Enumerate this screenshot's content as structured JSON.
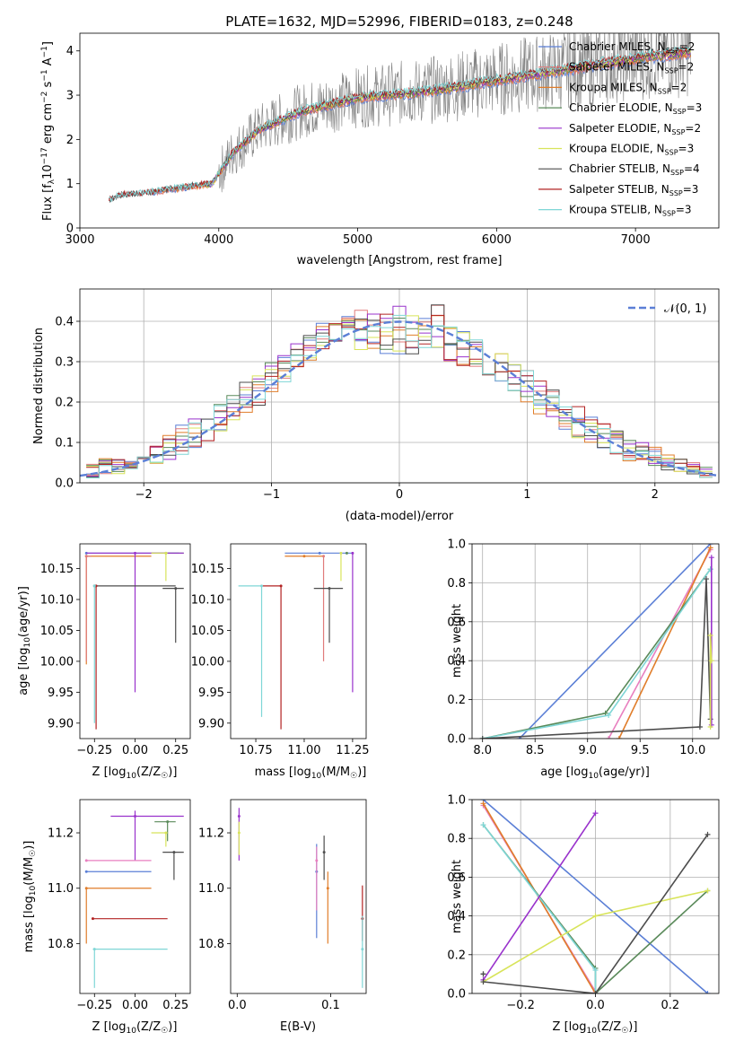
{
  "title": "PLATE=1632, MJD=52996, FIBERID=0183, z=0.248",
  "colors": {
    "chab_miles": "#5b7fd6",
    "salp_miles": "#e07b7b",
    "krou_miles": "#e07d2a",
    "chab_elodie": "#5a8a5a",
    "salp_elodie": "#9932cc",
    "krou_elodie": "#d8e45a",
    "chab_stelib": "#4d4d4d",
    "salp_stelib": "#b22222",
    "krou_stelib": "#7fd6d6",
    "pink": "#e87fbf",
    "data": "#808080"
  },
  "labels": {
    "spec_xlabel": "wavelength [Angstrom, rest frame]",
    "spec_ylabel": "Flux [f",
    "hist_xlabel": "(data-model)/error",
    "hist_ylabel": "Normed distribution",
    "hist_legend": "𝒩(0, 1)",
    "z_label": "Z [log",
    "age_label": "age  [log",
    "mass_label": "mass [log",
    "ebv_label": "E(B-V)",
    "mw_label": "mass weight"
  },
  "chart_data": [
    {
      "type": "line",
      "title": "PLATE=1632, MJD=52996, FIBERID=0183, z=0.248",
      "xlabel": "wavelength [Angstrom, rest frame]",
      "ylabel": "Flux [f_λ 10^-17 erg cm^-2 s^-1 A^-1]",
      "xlim": [
        3000,
        7600
      ],
      "ylim": [
        0,
        4.4
      ],
      "xticks": [
        "3000",
        "4000",
        "5000",
        "6000",
        "7000"
      ],
      "yticks": [
        "0",
        "1",
        "2",
        "3",
        "4"
      ],
      "legend": [
        {
          "name": "Chabrier MILES, N",
          "n": "=2",
          "color": "chab_miles"
        },
        {
          "name": "Salpeter MILES, N",
          "n": "=2",
          "color": "salp_miles"
        },
        {
          "name": "Kroupa MILES, N",
          "n": "=2",
          "color": "krou_miles"
        },
        {
          "name": "Chabrier ELODIE, N",
          "n": "=3",
          "color": "chab_elodie"
        },
        {
          "name": "Salpeter ELODIE, N",
          "n": "=2",
          "color": "salp_elodie"
        },
        {
          "name": "Kroupa ELODIE, N",
          "n": "=3",
          "color": "krou_elodie"
        },
        {
          "name": "Chabrier STELIB, N",
          "n": "=4",
          "color": "chab_stelib"
        },
        {
          "name": "Salpeter STELIB, N",
          "n": "=3",
          "color": "salp_stelib"
        },
        {
          "name": "Kroupa STELIB, N",
          "n": "=3",
          "color": "krou_stelib"
        }
      ],
      "continuum": [
        [
          3200,
          0.62
        ],
        [
          3300,
          0.75
        ],
        [
          3500,
          0.8
        ],
        [
          3800,
          0.95
        ],
        [
          3950,
          1.0
        ],
        [
          4100,
          1.7
        ],
        [
          4300,
          2.25
        ],
        [
          4600,
          2.65
        ],
        [
          5000,
          2.95
        ],
        [
          5500,
          3.1
        ],
        [
          6000,
          3.35
        ],
        [
          6500,
          3.6
        ],
        [
          7000,
          3.85
        ],
        [
          7400,
          4.0
        ]
      ]
    },
    {
      "type": "bar",
      "xlabel": "(data-model)/error",
      "ylabel": "Normed distribution",
      "xlim": [
        -2.5,
        2.5
      ],
      "ylim": [
        0,
        0.48
      ],
      "xticks": [
        "−2",
        "−1",
        "0",
        "1",
        "2"
      ],
      "yticks": [
        "0.0",
        "0.1",
        "0.2",
        "0.3",
        "0.4"
      ],
      "series": [
        {
          "name": "𝒩(0, 1)",
          "type": "gaussian",
          "mean": 0,
          "sigma": 1,
          "color": "chab_miles"
        }
      ],
      "bin_centers": [
        -2.4,
        -2.3,
        -2.2,
        -2.1,
        -2.0,
        -1.9,
        -1.8,
        -1.7,
        -1.6,
        -1.5,
        -1.4,
        -1.3,
        -1.2,
        -1.1,
        -1.0,
        -0.9,
        -0.8,
        -0.7,
        -0.6,
        -0.5,
        -0.4,
        -0.3,
        -0.2,
        -0.1,
        0.0,
        0.1,
        0.2,
        0.3,
        0.4,
        0.5,
        0.6,
        0.7,
        0.8,
        0.9,
        1.0,
        1.1,
        1.2,
        1.3,
        1.4,
        1.5,
        1.6,
        1.7,
        1.8,
        1.9,
        2.0,
        2.1,
        2.2,
        2.3,
        2.4
      ],
      "hist_ranges": [
        [
          0.01,
          0.06
        ],
        [
          0.02,
          0.06
        ],
        [
          0.02,
          0.06
        ],
        [
          0.03,
          0.08
        ],
        [
          0.04,
          0.09
        ],
        [
          0.04,
          0.1
        ],
        [
          0.05,
          0.12
        ],
        [
          0.06,
          0.15
        ],
        [
          0.08,
          0.16
        ],
        [
          0.1,
          0.18
        ],
        [
          0.12,
          0.2
        ],
        [
          0.15,
          0.22
        ],
        [
          0.17,
          0.25
        ],
        [
          0.19,
          0.27
        ],
        [
          0.22,
          0.3
        ],
        [
          0.25,
          0.32
        ],
        [
          0.28,
          0.35
        ],
        [
          0.3,
          0.38
        ],
        [
          0.33,
          0.4
        ],
        [
          0.34,
          0.42
        ],
        [
          0.34,
          0.43
        ],
        [
          0.33,
          0.43
        ],
        [
          0.32,
          0.42
        ],
        [
          0.31,
          0.42
        ],
        [
          0.3,
          0.44
        ],
        [
          0.31,
          0.42
        ],
        [
          0.31,
          0.41
        ],
        [
          0.32,
          0.45
        ],
        [
          0.3,
          0.42
        ],
        [
          0.29,
          0.39
        ],
        [
          0.28,
          0.37
        ],
        [
          0.26,
          0.35
        ],
        [
          0.24,
          0.33
        ],
        [
          0.22,
          0.3
        ],
        [
          0.19,
          0.28
        ],
        [
          0.17,
          0.26
        ],
        [
          0.15,
          0.23
        ],
        [
          0.13,
          0.21
        ],
        [
          0.11,
          0.19
        ],
        [
          0.1,
          0.17
        ],
        [
          0.08,
          0.15
        ],
        [
          0.07,
          0.13
        ],
        [
          0.05,
          0.11
        ],
        [
          0.05,
          0.1
        ],
        [
          0.04,
          0.09
        ],
        [
          0.03,
          0.07
        ],
        [
          0.02,
          0.06
        ],
        [
          0.02,
          0.05
        ],
        [
          0.01,
          0.04
        ]
      ]
    },
    {
      "type": "scatter",
      "panel": "Z vs age",
      "xlim": [
        -0.34,
        0.34
      ],
      "ylim": [
        9.875,
        10.19
      ],
      "xticks": [
        "−0.25",
        "0.00",
        "0.25"
      ],
      "yticks": [
        "9.90",
        "9.95",
        "10.00",
        "10.05",
        "10.10",
        "10.15"
      ],
      "points": [
        {
          "c": "chab_miles",
          "x": -0.3,
          "y": 10.175,
          "x0": -0.3,
          "x1": 0.27,
          "y0": 10.175,
          "y1": 10.175
        },
        {
          "c": "krou_miles",
          "x": -0.3,
          "y": 10.17,
          "x0": -0.3,
          "x1": 0.1,
          "y0": 9.995,
          "y1": 10.17
        },
        {
          "c": "salp_miles",
          "x": -0.3,
          "y": 10.17,
          "x0": -0.3,
          "x1": -0.27,
          "y0": 10.0,
          "y1": 10.17
        },
        {
          "c": "chab_elodie",
          "x": 0.19,
          "y": 10.175,
          "x0": 0.1,
          "x1": 0.3,
          "y0": 10.175,
          "y1": 10.175
        },
        {
          "c": "salp_elodie",
          "x": 0.0,
          "y": 10.175,
          "x0": -0.3,
          "x1": 0.3,
          "y0": 9.95,
          "y1": 10.175
        },
        {
          "c": "krou_elodie",
          "x": 0.19,
          "y": 10.175,
          "x0": 0.1,
          "x1": 0.2,
          "y0": 10.13,
          "y1": 10.175
        },
        {
          "c": "chab_stelib",
          "x": 0.25,
          "y": 10.118,
          "x0": 0.17,
          "x1": 0.3,
          "y0": 10.03,
          "y1": 10.118
        },
        {
          "c": "chab_stelib",
          "x": -0.25,
          "y": 10.122,
          "x0": -0.25,
          "x1": 0.25,
          "y0": 10.122,
          "y1": 10.122
        },
        {
          "c": "salp_stelib",
          "x": -0.24,
          "y": 10.122,
          "x0": -0.24,
          "x1": -0.24,
          "y0": 9.89,
          "y1": 10.122
        },
        {
          "c": "krou_stelib",
          "x": -0.25,
          "y": 10.122,
          "x0": -0.25,
          "x1": -0.25,
          "y0": 9.9,
          "y1": 10.122
        }
      ]
    },
    {
      "type": "scatter",
      "panel": "mass vs age",
      "xlim": [
        10.62,
        11.32
      ],
      "ylim": [
        9.875,
        10.19
      ],
      "xticks": [
        "10.75",
        "11.00",
        "11.25"
      ],
      "yticks": [
        "9.90",
        "9.95",
        "10.00",
        "10.05",
        "10.10",
        "10.15"
      ],
      "points": [
        {
          "c": "chab_miles",
          "x": 11.08,
          "y": 10.175,
          "x0": 10.9,
          "x1": 11.25,
          "y0": 10.175,
          "y1": 10.175
        },
        {
          "c": "krou_miles",
          "x": 11.0,
          "y": 10.17,
          "x0": 10.9,
          "x1": 11.1,
          "y0": 10.17,
          "y1": 10.17
        },
        {
          "c": "salp_miles",
          "x": 11.1,
          "y": 10.17,
          "x0": 11.1,
          "x1": 11.1,
          "y0": 10.0,
          "y1": 10.17
        },
        {
          "c": "chab_elodie",
          "x": 11.22,
          "y": 10.175,
          "x0": 11.22,
          "x1": 11.22,
          "y0": 10.175,
          "y1": 10.175
        },
        {
          "c": "salp_elodie",
          "x": 11.25,
          "y": 10.175,
          "x0": 11.25,
          "x1": 11.25,
          "y0": 9.95,
          "y1": 10.175
        },
        {
          "c": "krou_elodie",
          "x": 11.19,
          "y": 10.175,
          "x0": 11.19,
          "x1": 11.19,
          "y0": 10.13,
          "y1": 10.175
        },
        {
          "c": "chab_stelib",
          "x": 11.13,
          "y": 10.118,
          "x0": 11.05,
          "x1": 11.2,
          "y0": 10.03,
          "y1": 10.118
        },
        {
          "c": "salp_stelib",
          "x": 10.88,
          "y": 10.122,
          "x0": 10.78,
          "x1": 10.88,
          "y0": 9.89,
          "y1": 10.122
        },
        {
          "c": "krou_stelib",
          "x": 10.78,
          "y": 10.122,
          "x0": 10.66,
          "x1": 10.78,
          "y0": 9.91,
          "y1": 10.122
        }
      ]
    },
    {
      "type": "line",
      "panel": "age vs mass weight",
      "xlabel": "age  [log10(age/yr)]",
      "ylabel": "mass weight",
      "xlim": [
        7.9,
        10.25
      ],
      "ylim": [
        0,
        1.0
      ],
      "xticks": [
        "8.0",
        "8.5",
        "9.0",
        "9.5",
        "10.0"
      ],
      "yticks": [
        "0.0",
        "0.2",
        "0.4",
        "0.6",
        "0.8",
        "1.0"
      ],
      "series": [
        {
          "c": "chab_miles",
          "x": [
            8.35,
            10.17
          ],
          "y": [
            0.0,
            1.0
          ]
        },
        {
          "c": "pink",
          "x": [
            9.2,
            10.17
          ],
          "y": [
            0.0,
            0.97
          ]
        },
        {
          "c": "krou_miles",
          "x": [
            9.3,
            10.17
          ],
          "y": [
            0.0,
            0.98
          ]
        },
        {
          "c": "chab_elodie",
          "x": [
            8.0,
            9.17,
            10.17
          ],
          "y": [
            0.0,
            0.13,
            0.87
          ]
        },
        {
          "c": "krou_stelib",
          "x": [
            8.0,
            9.2,
            10.17
          ],
          "y": [
            0.0,
            0.12,
            0.87
          ]
        },
        {
          "c": "chab_stelib",
          "x": [
            8.0,
            10.07,
            10.13,
            10.17
          ],
          "y": [
            0.0,
            0.06,
            0.82,
            0.1
          ]
        },
        {
          "c": "salp_elodie",
          "x": [
            10.18,
            10.18
          ],
          "y": [
            0.07,
            0.93
          ]
        },
        {
          "c": "krou_elodie",
          "x": [
            10.17,
            10.17,
            10.18
          ],
          "y": [
            0.06,
            0.53,
            0.4
          ]
        }
      ]
    },
    {
      "type": "scatter",
      "panel": "Z vs mass",
      "xlim": [
        -0.34,
        0.34
      ],
      "ylim": [
        10.62,
        11.32
      ],
      "xticks": [
        "−0.25",
        "0.00",
        "0.25"
      ],
      "yticks": [
        "10.8",
        "11.0",
        "11.2"
      ],
      "points": [
        {
          "c": "salp_elodie",
          "x": 0.0,
          "y": 11.26,
          "x0": -0.15,
          "x1": 0.3,
          "y0": 11.1,
          "y1": 11.28
        },
        {
          "c": "chab_elodie",
          "x": 0.2,
          "y": 11.24,
          "x0": 0.12,
          "x1": 0.25,
          "y0": 11.17,
          "y1": 11.24
        },
        {
          "c": "krou_elodie",
          "x": 0.19,
          "y": 11.2,
          "x0": 0.1,
          "x1": 0.2,
          "y0": 11.15,
          "y1": 11.2
        },
        {
          "c": "chab_stelib",
          "x": 0.24,
          "y": 11.13,
          "x0": 0.17,
          "x1": 0.3,
          "y0": 11.03,
          "y1": 11.13
        },
        {
          "c": "pink",
          "x": -0.3,
          "y": 11.1,
          "x0": -0.3,
          "x1": 0.1,
          "y0": 11.1,
          "y1": 11.1
        },
        {
          "c": "chab_miles",
          "x": -0.3,
          "y": 11.06,
          "x0": -0.3,
          "x1": 0.1,
          "y0": 11.06,
          "y1": 11.06
        },
        {
          "c": "krou_miles",
          "x": -0.3,
          "y": 11.0,
          "x0": -0.3,
          "x1": 0.1,
          "y0": 10.8,
          "y1": 11.0
        },
        {
          "c": "salp_stelib",
          "x": -0.26,
          "y": 10.89,
          "x0": -0.26,
          "x1": 0.2,
          "y0": 10.89,
          "y1": 10.89
        },
        {
          "c": "krou_stelib",
          "x": -0.25,
          "y": 10.78,
          "x0": -0.26,
          "x1": 0.2,
          "y0": 10.64,
          "y1": 10.78
        }
      ]
    },
    {
      "type": "scatter",
      "panel": "E(B-V) vs mass",
      "xlabel": "E(B-V)",
      "xlim": [
        -0.007,
        0.138
      ],
      "ylim": [
        10.62,
        11.32
      ],
      "xticks": [
        "0.0",
        "0.1"
      ],
      "yticks": [
        "10.8",
        "11.0",
        "11.2"
      ],
      "points": [
        {
          "c": "salp_elodie",
          "x": 0.002,
          "y": 11.26,
          "x0": 0.002,
          "x1": 0.002,
          "y0": 11.1,
          "y1": 11.29
        },
        {
          "c": "krou_elodie",
          "x": 0.002,
          "y": 11.2,
          "x0": 0.002,
          "x1": 0.002,
          "y0": 11.12,
          "y1": 11.24
        },
        {
          "c": "chab_miles",
          "x": 0.085,
          "y": 11.06,
          "x0": 0.085,
          "x1": 0.085,
          "y0": 10.82,
          "y1": 11.16
        },
        {
          "c": "pink",
          "x": 0.085,
          "y": 11.1,
          "x0": 0.085,
          "x1": 0.085,
          "y0": 10.92,
          "y1": 11.15
        },
        {
          "c": "chab_stelib",
          "x": 0.093,
          "y": 11.13,
          "x0": 0.093,
          "x1": 0.093,
          "y0": 11.03,
          "y1": 11.19
        },
        {
          "c": "krou_miles",
          "x": 0.097,
          "y": 11.0,
          "x0": 0.097,
          "x1": 0.097,
          "y0": 10.8,
          "y1": 11.06
        },
        {
          "c": "salp_stelib",
          "x": 0.134,
          "y": 10.89,
          "x0": 0.134,
          "x1": 0.134,
          "y0": 10.81,
          "y1": 11.01
        },
        {
          "c": "krou_stelib",
          "x": 0.134,
          "y": 10.78,
          "x0": 0.134,
          "x1": 0.134,
          "y0": 10.64,
          "y1": 10.9
        }
      ]
    },
    {
      "type": "line",
      "panel": "Z vs mass weight",
      "xlabel": "Z [log10(Z/Z☉)]",
      "ylabel": "mass weight",
      "xlim": [
        -0.33,
        0.33
      ],
      "ylim": [
        0,
        1.0
      ],
      "xticks": [
        "−0.2",
        "0.0",
        "0.2"
      ],
      "yticks": [
        "0.0",
        "0.2",
        "0.4",
        "0.6",
        "0.8",
        "1.0"
      ],
      "series": [
        {
          "c": "chab_miles",
          "x": [
            -0.3,
            0.3
          ],
          "y": [
            1.0,
            0.0
          ]
        },
        {
          "c": "pink",
          "x": [
            -0.3,
            0.0
          ],
          "y": [
            0.97,
            0.01
          ]
        },
        {
          "c": "krou_miles",
          "x": [
            -0.3,
            0.0
          ],
          "y": [
            0.98,
            0.0
          ]
        },
        {
          "c": "chab_elodie",
          "x": [
            -0.3,
            0.0,
            0.0,
            0.3
          ],
          "y": [
            0.87,
            0.13,
            0.0,
            0.53
          ]
        },
        {
          "c": "krou_stelib",
          "x": [
            -0.3,
            0.0,
            0.0
          ],
          "y": [
            0.87,
            0.12,
            0.0
          ]
        },
        {
          "c": "salp_elodie",
          "x": [
            -0.3,
            0.0
          ],
          "y": [
            0.07,
            0.93
          ]
        },
        {
          "c": "krou_elodie",
          "x": [
            -0.3,
            0.0,
            0.3
          ],
          "y": [
            0.06,
            0.4,
            0.53
          ]
        },
        {
          "c": "chab_stelib",
          "x": [
            -0.3,
            0.0,
            0.3
          ],
          "y": [
            0.06,
            0.0,
            0.82
          ]
        },
        {
          "c": "chab_stelib",
          "x": [
            -0.3,
            -0.3
          ],
          "y": [
            0.1,
            0.1
          ]
        }
      ]
    }
  ]
}
